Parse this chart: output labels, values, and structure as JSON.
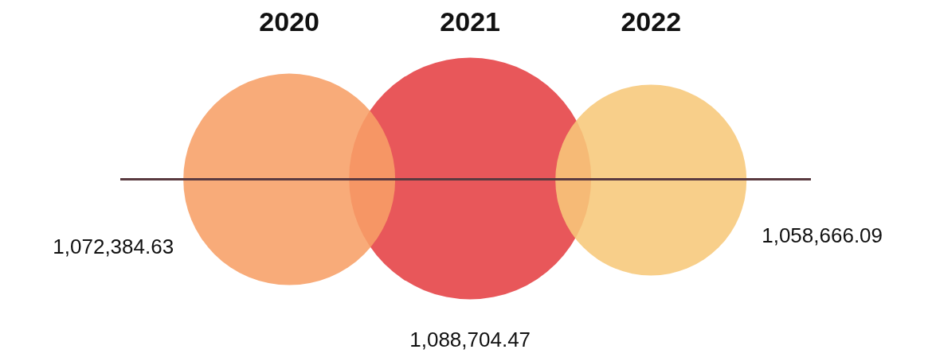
{
  "chart_data": {
    "type": "other",
    "categories": [
      "2020",
      "2021",
      "2022"
    ],
    "values": [
      1072384.63,
      1088704.47,
      1058666.09
    ],
    "value_labels": [
      "1,072,384.63",
      "1,088,704.47",
      "1,058,666.09"
    ],
    "colors": [
      "#f79f67",
      "#e54043",
      "#f7c87a"
    ]
  }
}
